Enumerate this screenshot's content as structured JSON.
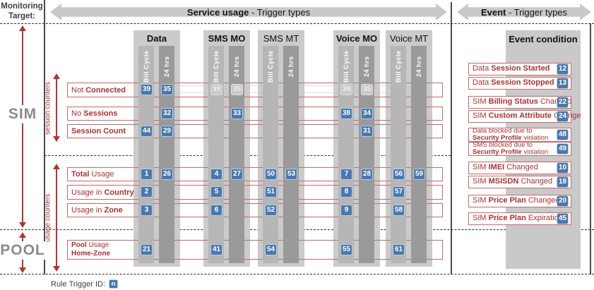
{
  "header": {
    "monitoring_target_line1": "Monitoring",
    "monitoring_target_line2": "Target:",
    "service_arrow_bold": "Service usage",
    "service_arrow_rest": " - Trigger types",
    "event_arrow_bold": "Event",
    "event_arrow_rest": " - Trigger types"
  },
  "targets": {
    "sim": "SIM",
    "pool": "POOL"
  },
  "counter_groups": {
    "session": "session counters",
    "usage": "usage counters"
  },
  "columns": [
    {
      "id": "data",
      "label": "Data",
      "bold": true
    },
    {
      "id": "sms_mo",
      "label": "SMS MO",
      "bold": true
    },
    {
      "id": "sms_mt",
      "label": "SMS MT",
      "bold": false
    },
    {
      "id": "voice_mo",
      "label": "Voice MO",
      "bold": true
    },
    {
      "id": "voice_mt",
      "label": "Voice MT",
      "bold": false
    }
  ],
  "bar_labels": {
    "bill_cycle": "Bill Cycle",
    "hrs24": "24 hrs"
  },
  "rows": [
    {
      "id": "not_connected",
      "label": [
        [
          "Not ",
          false
        ],
        [
          "Connected",
          true
        ]
      ],
      "badges": [
        {
          "col": "data",
          "slot": "bc",
          "value": "39"
        },
        {
          "col": "data",
          "slot": "h24",
          "value": "35"
        },
        {
          "col": "sms_mo",
          "slot": "bc",
          "value": "39",
          "ghost": true
        },
        {
          "col": "sms_mo",
          "slot": "h24",
          "value": "35",
          "ghost": true
        },
        {
          "col": "voice_mo",
          "slot": "bc",
          "value": "39",
          "ghost": true
        },
        {
          "col": "voice_mo",
          "slot": "h24",
          "value": "35",
          "ghost": true
        }
      ]
    },
    {
      "id": "no_sessions",
      "label": [
        [
          "No ",
          false
        ],
        [
          "Sessions",
          true
        ]
      ],
      "badges": [
        {
          "col": "data",
          "slot": "h24",
          "value": "32"
        },
        {
          "col": "sms_mo",
          "slot": "h24",
          "value": "33"
        },
        {
          "col": "voice_mo",
          "slot": "bc",
          "value": "38"
        },
        {
          "col": "voice_mo",
          "slot": "h24",
          "value": "34"
        }
      ]
    },
    {
      "id": "session_count",
      "label": [
        [
          "Session Count",
          true
        ]
      ],
      "badges": [
        {
          "col": "data",
          "slot": "bc",
          "value": "44"
        },
        {
          "col": "data",
          "slot": "h24",
          "value": "29"
        },
        {
          "col": "voice_mo",
          "slot": "h24",
          "value": "31"
        }
      ]
    },
    {
      "id": "total_usage",
      "label": [
        [
          "Total",
          true
        ],
        [
          " Usage",
          false
        ]
      ],
      "badges": [
        {
          "col": "data",
          "slot": "bc",
          "value": "1"
        },
        {
          "col": "data",
          "slot": "h24",
          "value": "26"
        },
        {
          "col": "sms_mo",
          "slot": "bc",
          "value": "4"
        },
        {
          "col": "sms_mo",
          "slot": "h24",
          "value": "27"
        },
        {
          "col": "sms_mt",
          "slot": "bc",
          "value": "50"
        },
        {
          "col": "sms_mt",
          "slot": "h24",
          "value": "53"
        },
        {
          "col": "voice_mo",
          "slot": "bc",
          "value": "7"
        },
        {
          "col": "voice_mo",
          "slot": "h24",
          "value": "28"
        },
        {
          "col": "voice_mt",
          "slot": "bc",
          "value": "56"
        },
        {
          "col": "voice_mt",
          "slot": "h24",
          "value": "59"
        }
      ]
    },
    {
      "id": "usage_country",
      "label": [
        [
          "Usage in ",
          false
        ],
        [
          "Country",
          true
        ]
      ],
      "badges": [
        {
          "col": "data",
          "slot": "bc",
          "value": "2"
        },
        {
          "col": "sms_mo",
          "slot": "bc",
          "value": "5"
        },
        {
          "col": "sms_mt",
          "slot": "bc",
          "value": "51"
        },
        {
          "col": "voice_mo",
          "slot": "bc",
          "value": "8"
        },
        {
          "col": "voice_mt",
          "slot": "bc",
          "value": "57"
        }
      ]
    },
    {
      "id": "usage_zone",
      "label": [
        [
          "Usage in ",
          false
        ],
        [
          "Zone",
          true
        ]
      ],
      "badges": [
        {
          "col": "data",
          "slot": "bc",
          "value": "3"
        },
        {
          "col": "sms_mo",
          "slot": "bc",
          "value": "6"
        },
        {
          "col": "sms_mt",
          "slot": "bc",
          "value": "52"
        },
        {
          "col": "voice_mo",
          "slot": "bc",
          "value": "9"
        },
        {
          "col": "voice_mt",
          "slot": "bc",
          "value": "58"
        }
      ]
    },
    {
      "id": "pool_usage",
      "label": [
        [
          "Pool",
          true
        ],
        [
          " Usage",
          false
        ],
        [
          "\n",
          false
        ],
        [
          "Home-Zone",
          true
        ]
      ],
      "badges": [
        {
          "col": "data",
          "slot": "bc",
          "value": "21"
        },
        {
          "col": "sms_mo",
          "slot": "bc",
          "value": "41"
        },
        {
          "col": "sms_mt",
          "slot": "bc",
          "value": "54"
        },
        {
          "col": "voice_mo",
          "slot": "bc",
          "value": "55"
        },
        {
          "col": "voice_mt",
          "slot": "bc",
          "value": "61"
        }
      ]
    }
  ],
  "event_section": {
    "header": "Event condition",
    "events": [
      {
        "id": 1,
        "label": [
          [
            "Data ",
            false
          ],
          [
            "Session Started",
            true
          ]
        ],
        "value": "12"
      },
      {
        "id": 2,
        "label": [
          [
            "Data ",
            false
          ],
          [
            "Session Stopped",
            true
          ]
        ],
        "value": "13"
      },
      {
        "id": 3,
        "label": [
          [
            "SIM ",
            false
          ],
          [
            "Billing Status",
            true
          ],
          [
            " Changed",
            false
          ]
        ],
        "value": "22"
      },
      {
        "id": 4,
        "label": [
          [
            "SIM ",
            false
          ],
          [
            "Custom Attribute",
            true
          ],
          [
            " Change",
            false
          ]
        ],
        "value": "24"
      },
      {
        "id": 5,
        "label": [
          [
            "Data blocked due to\n",
            false
          ],
          [
            "Security Profile",
            true
          ],
          [
            " violation",
            false
          ]
        ],
        "value": "48",
        "small": true
      },
      {
        "id": 6,
        "label": [
          [
            "SMS blocked due to\n",
            false
          ],
          [
            "Security Profile",
            true
          ],
          [
            " violation",
            false
          ]
        ],
        "value": "49",
        "small": true
      },
      {
        "id": 7,
        "label": [
          [
            "SIM ",
            false
          ],
          [
            "IMEI",
            true
          ],
          [
            " Changed",
            false
          ]
        ],
        "value": "10"
      },
      {
        "id": 8,
        "label": [
          [
            "SIM ",
            false
          ],
          [
            "MSISDN",
            true
          ],
          [
            " Changed",
            false
          ]
        ],
        "value": "18"
      },
      {
        "id": 9,
        "label": [
          [
            "SIM ",
            false
          ],
          [
            "Price Plan",
            true
          ],
          [
            " Changed",
            false
          ]
        ],
        "value": "20"
      },
      {
        "id": 10,
        "label": [
          [
            "SIM ",
            false
          ],
          [
            "Price Plan",
            true
          ],
          [
            " Expiration",
            false
          ]
        ],
        "value": "45"
      }
    ]
  },
  "legend": {
    "label": "Rule Trigger ID:",
    "badge": "n"
  },
  "colors": {
    "red_text": "#ab3232",
    "red_border": "#c46a6a",
    "badge_blue": "#4a78ad",
    "badge_border": "#b9cfe6",
    "group_gray": "#cbcbcb",
    "bar_light": "#b6b6b6",
    "bar_dark": "#9a9a9a",
    "target_gray": "#8b8b8b"
  }
}
